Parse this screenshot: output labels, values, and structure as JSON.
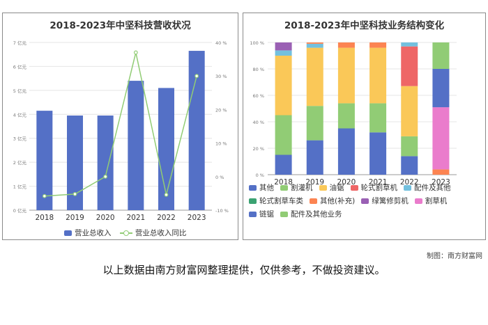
{
  "left_chart_title": "2018-2023年中坚科技营收状况",
  "right_chart_title": "2018-2023年中坚科技业务结构变化",
  "credit": "制图：南方财富网",
  "disclaimer": "以上数据由南方财富网整理提供，仅供参考，不做投资建议。",
  "colors": {
    "bar_blue": "#5470c6",
    "line_green": "#91cc75"
  },
  "chart_data": [
    {
      "type": "bar",
      "title": "2018-2023年中坚科技营收状况",
      "categories": [
        "2018",
        "2019",
        "2020",
        "2021",
        "2022",
        "2023"
      ],
      "y_left_ticks": [
        "0 亿元",
        "1 亿元",
        "2 亿元",
        "3 亿元",
        "4 亿元",
        "5 亿元",
        "6 亿元",
        "7 亿元"
      ],
      "y_right_ticks": [
        "-10 %",
        "0 %",
        "10 %",
        "20 %",
        "30 %",
        "40 %"
      ],
      "ylim_left": [
        0,
        7
      ],
      "ylim_right": [
        -10,
        40
      ],
      "series": [
        {
          "name": "营业总收入",
          "type": "bar",
          "axis": "left",
          "values": [
            4.15,
            3.95,
            3.95,
            5.4,
            5.1,
            6.65
          ]
        },
        {
          "name": "营业总收入同比",
          "type": "line",
          "axis": "right",
          "values": [
            -5.8,
            -5.2,
            0.0,
            37.0,
            -5.4,
            30.0
          ]
        }
      ],
      "legend_position": "bottom"
    },
    {
      "type": "bar",
      "stacked": true,
      "title": "2018-2023年中坚科技业务结构变化",
      "categories": [
        "2018",
        "2019",
        "2020",
        "2021",
        "2022",
        "2023"
      ],
      "y_ticks": [
        "0 %",
        "20 %",
        "40 %",
        "60 %",
        "80 %",
        "100 %"
      ],
      "ylim": [
        0,
        100
      ],
      "series": [
        {
          "name": "其他",
          "color": "#5470c6",
          "values": [
            15,
            26,
            35,
            32,
            14,
            0
          ]
        },
        {
          "name": "割灌机",
          "color": "#91cc75",
          "values": [
            30,
            26,
            19,
            22,
            15,
            0
          ]
        },
        {
          "name": "油锯",
          "color": "#fac858",
          "values": [
            45,
            44,
            42,
            42,
            38,
            0
          ]
        },
        {
          "name": "轮式割草机",
          "color": "#ee6666",
          "values": [
            0,
            0,
            0,
            0,
            30,
            0
          ]
        },
        {
          "name": "配件及其他",
          "color": "#73c0de",
          "values": [
            4,
            3,
            0,
            0,
            3,
            0
          ]
        },
        {
          "name": "轮式割草车类",
          "color": "#3ba272",
          "values": [
            0,
            0,
            0,
            0,
            0,
            0
          ]
        },
        {
          "name": "其他(补充)",
          "color": "#fc8452",
          "values": [
            0,
            1,
            4,
            4,
            0,
            4
          ]
        },
        {
          "name": "绿篱修剪机",
          "color": "#9a60b4",
          "values": [
            6,
            0,
            0,
            0,
            0,
            0
          ]
        },
        {
          "name": "割草机",
          "color": "#ea7ccc",
          "values": [
            0,
            0,
            0,
            0,
            0,
            47
          ]
        },
        {
          "name": "链锯",
          "color": "#5470c6",
          "values": [
            0,
            0,
            0,
            0,
            0,
            29
          ]
        },
        {
          "name": "配件及其他业务",
          "color": "#91cc75",
          "values": [
            0,
            0,
            0,
            0,
            0,
            20
          ]
        }
      ],
      "legend_position": "bottom"
    }
  ]
}
